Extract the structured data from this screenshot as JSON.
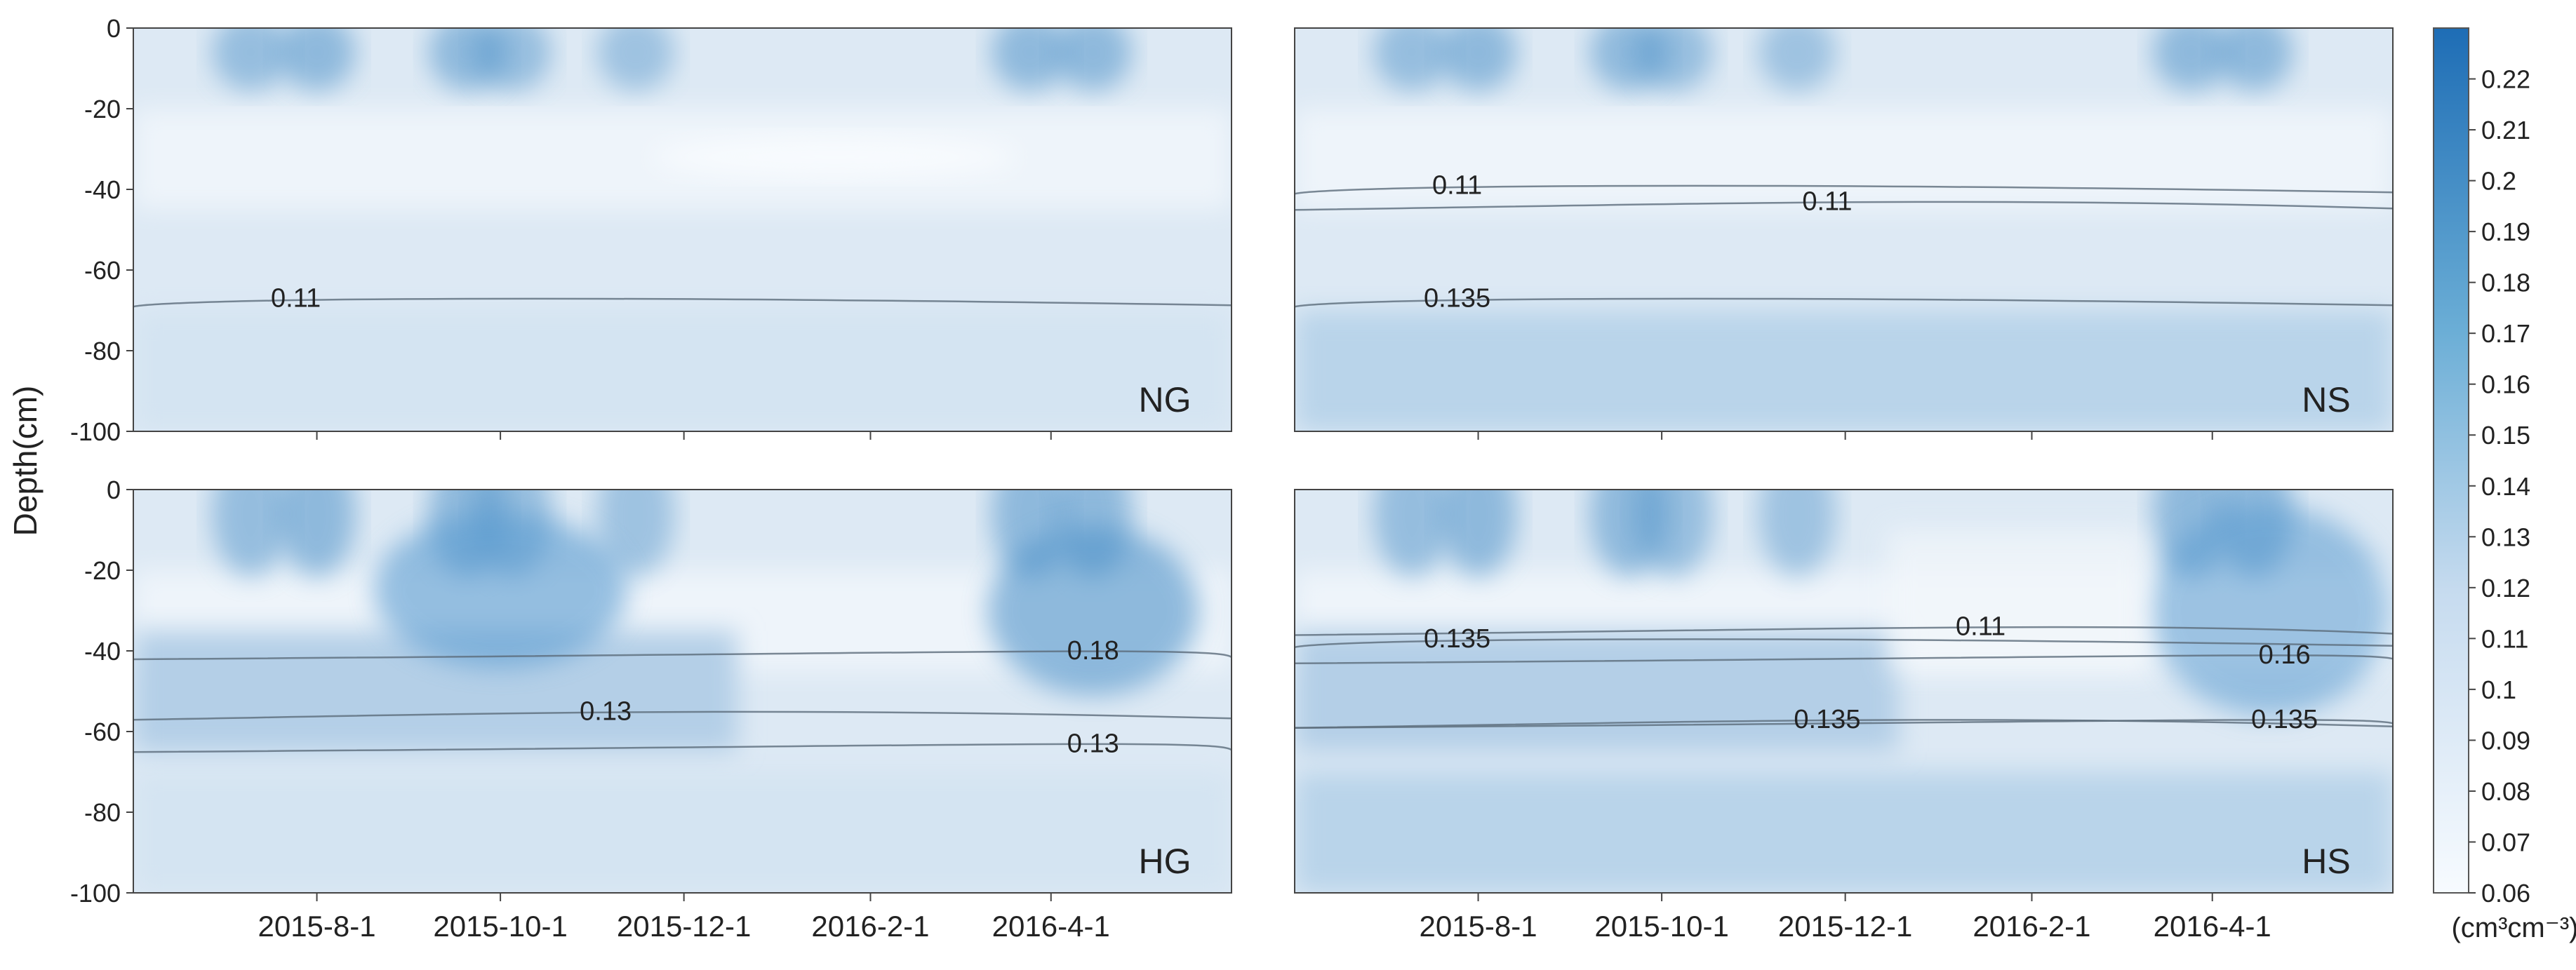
{
  "chart_data": {
    "type": "heatmap",
    "ylabel": "Depth(cm)",
    "ylim": [
      -100,
      0
    ],
    "y_ticks": [
      "0",
      "-20",
      "-40",
      "-60",
      "-80",
      "-100"
    ],
    "x_range": [
      "2015-6-1",
      "2016-5-31"
    ],
    "colorbar": {
      "unit": "(cm³cm⁻³)",
      "min": 0.06,
      "max": 0.23,
      "ticks": [
        "0.22",
        "0.21",
        "0.2",
        "0.19",
        "0.18",
        "0.17",
        "0.16",
        "0.15",
        "0.14",
        "0.13",
        "0.12",
        "0.11",
        "0.1",
        "0.09",
        "0.08",
        "0.07",
        "0.06"
      ],
      "color_low": "#f7fbff",
      "color_high": "#1e6db5"
    },
    "panels": [
      {
        "name": "NG",
        "x_ticks": [
          "2015-8-1",
          "2015-10-1",
          "2015-12-1",
          "2016-2-1",
          "2016-4-1"
        ],
        "contour_labels": [
          {
            "text": "0.11",
            "x": "2015-7-25",
            "y": -67
          }
        ]
      },
      {
        "name": "NS",
        "x_ticks": [
          "2015-8-1",
          "2015-10-1",
          "2015-12-1",
          "2016-2-1",
          "2016-4-1"
        ],
        "contour_labels": [
          {
            "text": "0.11",
            "x": "2015-7-25",
            "y": -39
          },
          {
            "text": "0.11",
            "x": "2015-11-25",
            "y": -43
          },
          {
            "text": "0.135",
            "x": "2015-7-25",
            "y": -67
          }
        ]
      },
      {
        "name": "HG",
        "x_ticks": [
          "2015-8-1",
          "2015-10-1",
          "2015-12-1",
          "2016-2-1",
          "2016-4-1"
        ],
        "contour_labels": [
          {
            "text": "0.18",
            "x": "2016-4-15",
            "y": -40
          },
          {
            "text": "0.13",
            "x": "2015-11-5",
            "y": -55
          },
          {
            "text": "0.13",
            "x": "2016-4-15",
            "y": -63
          }
        ]
      },
      {
        "name": "HS",
        "x_ticks": [
          "2015-8-1",
          "2015-10-1",
          "2015-12-1",
          "2016-2-1",
          "2016-4-1"
        ],
        "contour_labels": [
          {
            "text": "0.135",
            "x": "2015-7-25",
            "y": -37
          },
          {
            "text": "0.11",
            "x": "2016-1-15",
            "y": -34
          },
          {
            "text": "0.16",
            "x": "2016-4-25",
            "y": -41
          },
          {
            "text": "0.135",
            "x": "2015-11-25",
            "y": -57
          },
          {
            "text": "0.135",
            "x": "2016-4-25",
            "y": -57
          }
        ]
      }
    ]
  }
}
